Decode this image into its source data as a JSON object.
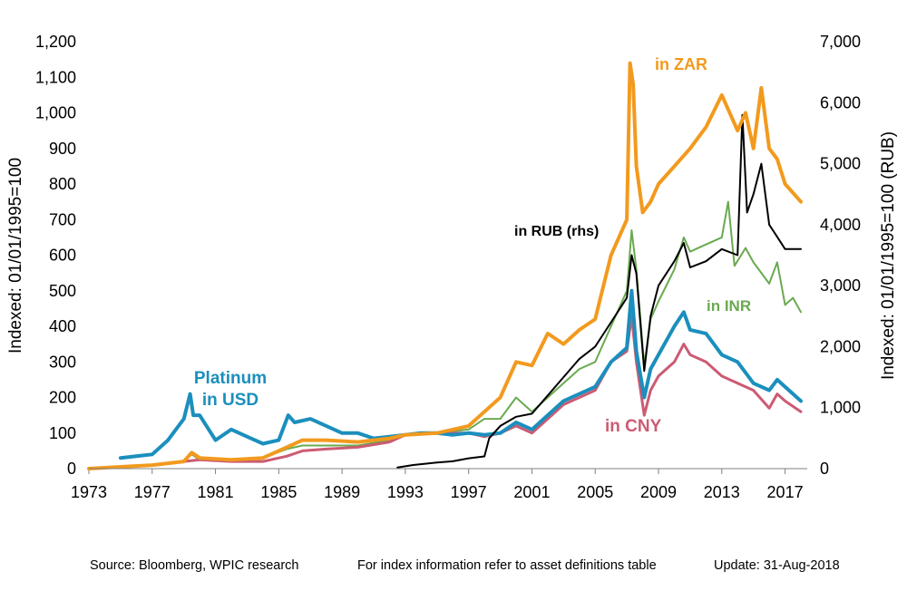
{
  "chart_data": {
    "type": "line",
    "left_axis": {
      "label": "Indexed: 01/01/1995=100",
      "min": 0,
      "max": 1200,
      "step": 100,
      "ticks": [
        "0",
        "100",
        "200",
        "300",
        "400",
        "500",
        "600",
        "700",
        "800",
        "900",
        "1,000",
        "1,100",
        "1,200"
      ]
    },
    "right_axis": {
      "label": "Indexed: 01/01/1995=100  (RUB)",
      "min": 0,
      "max": 7000,
      "step": 1000,
      "ticks": [
        "0",
        "1,000",
        "2,000",
        "3,000",
        "4,000",
        "5,000",
        "6,000",
        "7,000"
      ]
    },
    "x_axis": {
      "min": 1973,
      "max": 2018.4,
      "ticks": [
        "1973",
        "1977",
        "1981",
        "1985",
        "1989",
        "1993",
        "1997",
        "2001",
        "2005",
        "2009",
        "2013",
        "2017"
      ]
    },
    "series": [
      {
        "name": "in INR",
        "color": "#6aaa50",
        "axis": "left",
        "stroke": 2,
        "points": [
          [
            1973,
            0
          ],
          [
            1975,
            5
          ],
          [
            1977,
            10
          ],
          [
            1979,
            20
          ],
          [
            1979.5,
            40
          ],
          [
            1980,
            25
          ],
          [
            1982,
            20
          ],
          [
            1984,
            30
          ],
          [
            1985.5,
            55
          ],
          [
            1986.5,
            65
          ],
          [
            1988,
            65
          ],
          [
            1990,
            65
          ],
          [
            1992,
            80
          ],
          [
            1993,
            95
          ],
          [
            1995,
            100
          ],
          [
            1997,
            110
          ],
          [
            1998,
            140
          ],
          [
            1999,
            140
          ],
          [
            2000,
            200
          ],
          [
            2001,
            160
          ],
          [
            2002,
            200
          ],
          [
            2003,
            240
          ],
          [
            2004,
            280
          ],
          [
            2005,
            300
          ],
          [
            2006,
            400
          ],
          [
            2007,
            500
          ],
          [
            2007.3,
            670
          ],
          [
            2007.6,
            560
          ],
          [
            2008.1,
            290
          ],
          [
            2008.5,
            420
          ],
          [
            2009,
            470
          ],
          [
            2010,
            560
          ],
          [
            2010.6,
            650
          ],
          [
            2011,
            610
          ],
          [
            2012,
            630
          ],
          [
            2013,
            650
          ],
          [
            2013.4,
            750
          ],
          [
            2013.8,
            570
          ],
          [
            2014.5,
            620
          ],
          [
            2015,
            580
          ],
          [
            2016,
            520
          ],
          [
            2016.5,
            580
          ],
          [
            2017,
            460
          ],
          [
            2017.5,
            480
          ],
          [
            2018,
            440
          ]
        ]
      },
      {
        "name": "in CNY",
        "color": "#cc5b73",
        "axis": "left",
        "stroke": 3,
        "points": [
          [
            1973,
            0
          ],
          [
            1975,
            5
          ],
          [
            1977,
            10
          ],
          [
            1979,
            20
          ],
          [
            1980,
            25
          ],
          [
            1982,
            20
          ],
          [
            1984,
            20
          ],
          [
            1985.5,
            35
          ],
          [
            1986.5,
            50
          ],
          [
            1988,
            55
          ],
          [
            1990,
            60
          ],
          [
            1992,
            75
          ],
          [
            1993,
            95
          ],
          [
            1995,
            100
          ],
          [
            1997,
            100
          ],
          [
            1998,
            90
          ],
          [
            1999,
            100
          ],
          [
            2000,
            120
          ],
          [
            2001,
            100
          ],
          [
            2002,
            140
          ],
          [
            2003,
            180
          ],
          [
            2004,
            200
          ],
          [
            2005,
            220
          ],
          [
            2006,
            300
          ],
          [
            2007,
            330
          ],
          [
            2007.3,
            430
          ],
          [
            2007.6,
            300
          ],
          [
            2008.1,
            150
          ],
          [
            2008.5,
            220
          ],
          [
            2009,
            260
          ],
          [
            2010,
            300
          ],
          [
            2010.6,
            350
          ],
          [
            2011,
            320
          ],
          [
            2012,
            300
          ],
          [
            2013,
            260
          ],
          [
            2014,
            240
          ],
          [
            2015,
            220
          ],
          [
            2016,
            170
          ],
          [
            2016.5,
            210
          ],
          [
            2017,
            190
          ],
          [
            2018,
            160
          ]
        ]
      },
      {
        "name": "Platinum in USD",
        "color": "#1b8fbd",
        "axis": "left",
        "stroke": 4,
        "points": [
          [
            1975,
            30
          ],
          [
            1976,
            35
          ],
          [
            1977,
            40
          ],
          [
            1978,
            80
          ],
          [
            1979,
            140
          ],
          [
            1979.4,
            210
          ],
          [
            1979.6,
            150
          ],
          [
            1980,
            150
          ],
          [
            1981,
            80
          ],
          [
            1982,
            110
          ],
          [
            1983,
            90
          ],
          [
            1984,
            70
          ],
          [
            1985,
            80
          ],
          [
            1985.6,
            150
          ],
          [
            1986,
            130
          ],
          [
            1987,
            140
          ],
          [
            1988,
            120
          ],
          [
            1989,
            100
          ],
          [
            1990,
            100
          ],
          [
            1991,
            85
          ],
          [
            1992,
            90
          ],
          [
            1993,
            95
          ],
          [
            1994,
            100
          ],
          [
            1995,
            100
          ],
          [
            1996,
            95
          ],
          [
            1997,
            100
          ],
          [
            1998,
            95
          ],
          [
            1999,
            100
          ],
          [
            2000,
            130
          ],
          [
            2001,
            110
          ],
          [
            2002,
            150
          ],
          [
            2003,
            190
          ],
          [
            2004,
            210
          ],
          [
            2005,
            230
          ],
          [
            2006,
            300
          ],
          [
            2007,
            340
          ],
          [
            2007.3,
            500
          ],
          [
            2007.6,
            330
          ],
          [
            2008.1,
            200
          ],
          [
            2008.5,
            280
          ],
          [
            2009,
            320
          ],
          [
            2010,
            400
          ],
          [
            2010.6,
            440
          ],
          [
            2011,
            390
          ],
          [
            2012,
            380
          ],
          [
            2013,
            320
          ],
          [
            2014,
            300
          ],
          [
            2015,
            240
          ],
          [
            2016,
            220
          ],
          [
            2016.5,
            250
          ],
          [
            2017,
            230
          ],
          [
            2018,
            190
          ]
        ]
      },
      {
        "name": "in RUB (rhs)",
        "color": "#000000",
        "axis": "right",
        "stroke": 2,
        "points": [
          [
            1992.5,
            20
          ],
          [
            1993.5,
            60
          ],
          [
            1995,
            100
          ],
          [
            1996,
            120
          ],
          [
            1997,
            170
          ],
          [
            1998,
            200
          ],
          [
            1998.3,
            500
          ],
          [
            1999,
            700
          ],
          [
            2000,
            850
          ],
          [
            2001,
            900
          ],
          [
            2002,
            1200
          ],
          [
            2003,
            1500
          ],
          [
            2004,
            1800
          ],
          [
            2005,
            2000
          ],
          [
            2006,
            2400
          ],
          [
            2007,
            2800
          ],
          [
            2007.3,
            3500
          ],
          [
            2007.6,
            3200
          ],
          [
            2008.1,
            1600
          ],
          [
            2008.5,
            2500
          ],
          [
            2009,
            3000
          ],
          [
            2010,
            3400
          ],
          [
            2010.6,
            3700
          ],
          [
            2011,
            3300
          ],
          [
            2012,
            3400
          ],
          [
            2013,
            3600
          ],
          [
            2014,
            3500
          ],
          [
            2014.3,
            5800
          ],
          [
            2014.6,
            4200
          ],
          [
            2015,
            4500
          ],
          [
            2015.5,
            5000
          ],
          [
            2016,
            4000
          ],
          [
            2016.5,
            3800
          ],
          [
            2017,
            3600
          ],
          [
            2018,
            3600
          ]
        ]
      },
      {
        "name": "in ZAR",
        "color": "#f29a1e",
        "axis": "left",
        "stroke": 4,
        "points": [
          [
            1973,
            0
          ],
          [
            1975,
            5
          ],
          [
            1977,
            10
          ],
          [
            1979,
            20
          ],
          [
            1979.5,
            45
          ],
          [
            1980,
            30
          ],
          [
            1982,
            25
          ],
          [
            1984,
            30
          ],
          [
            1985.5,
            60
          ],
          [
            1986.5,
            80
          ],
          [
            1988,
            80
          ],
          [
            1990,
            75
          ],
          [
            1992,
            85
          ],
          [
            1993,
            95
          ],
          [
            1995,
            100
          ],
          [
            1997,
            120
          ],
          [
            1998,
            160
          ],
          [
            1999,
            200
          ],
          [
            2000,
            300
          ],
          [
            2001,
            290
          ],
          [
            2002,
            380
          ],
          [
            2003,
            350
          ],
          [
            2004,
            390
          ],
          [
            2005,
            420
          ],
          [
            2006,
            600
          ],
          [
            2006.5,
            650
          ],
          [
            2007,
            700
          ],
          [
            2007.2,
            1140
          ],
          [
            2007.4,
            1080
          ],
          [
            2007.6,
            850
          ],
          [
            2008,
            720
          ],
          [
            2008.5,
            750
          ],
          [
            2009,
            800
          ],
          [
            2010,
            850
          ],
          [
            2011,
            900
          ],
          [
            2012,
            960
          ],
          [
            2013,
            1050
          ],
          [
            2014,
            950
          ],
          [
            2014.5,
            1000
          ],
          [
            2015,
            900
          ],
          [
            2015.5,
            1070
          ],
          [
            2016,
            900
          ],
          [
            2016.5,
            870
          ],
          [
            2017,
            800
          ],
          [
            2018,
            750
          ]
        ]
      }
    ],
    "annotations": {
      "platinum_line1": "Platinum",
      "platinum_line2": "in USD",
      "zar": "in ZAR",
      "rub": "in RUB (rhs)",
      "inr": "in INR",
      "cny": "in CNY"
    }
  },
  "footer": {
    "source": "Source: Bloomberg, WPIC research",
    "note": "For index information refer to asset definitions table",
    "update": "Update: 31-Aug-2018"
  }
}
